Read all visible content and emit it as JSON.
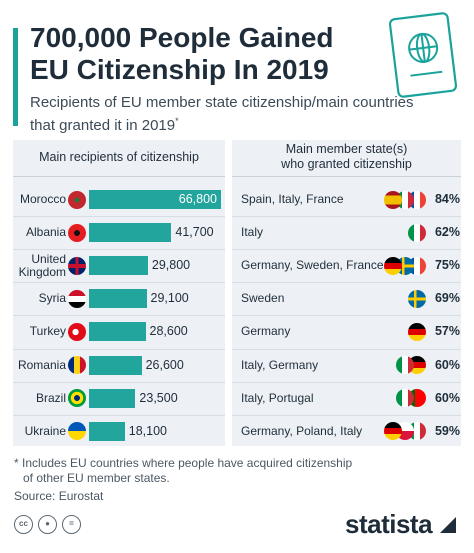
{
  "header": {
    "title_line1": "700,000 People Gained",
    "title_line2": "EU Citizenship In 2019",
    "subtitle_line1": "Recipients of EU member state citizenship/main countries",
    "subtitle_line2": "that granted it in 2019",
    "subtitle_marker": "*"
  },
  "table": {
    "left_header": "Main recipients of citizenship",
    "right_header_line1": "Main member state(s)",
    "right_header_line2": "who granted citizenship"
  },
  "chart_data": {
    "type": "bar",
    "orientation": "horizontal",
    "categories": [
      "Morocco",
      "Albania",
      "United Kingdom",
      "Syria",
      "Turkey",
      "Romania",
      "Brazil",
      "Ukraine"
    ],
    "category_lines": [
      [
        "Morocco"
      ],
      [
        "Albania"
      ],
      [
        "United",
        "Kingdom"
      ],
      [
        "Syria"
      ],
      [
        "Turkey"
      ],
      [
        "Romania"
      ],
      [
        "Brazil"
      ],
      [
        "Ukraine"
      ]
    ],
    "values": [
      66800,
      41700,
      29800,
      29100,
      28600,
      26600,
      23500,
      18100
    ],
    "value_labels": [
      "66,800",
      "41,700",
      "29,800",
      "29,100",
      "28,600",
      "26,600",
      "23,500",
      "18,100"
    ],
    "granting_states": [
      "Spain, Italy, France",
      "Italy",
      "Germany, Sweden, France",
      "Sweden",
      "Germany",
      "Italy, Germany",
      "Italy, Portugal",
      "Germany, Poland, Italy"
    ],
    "granting_share": [
      "84%",
      "62%",
      "75%",
      "69%",
      "57%",
      "60%",
      "60%",
      "59%"
    ],
    "recipient_flags": [
      "morocco-flag-icon",
      "albania-flag-icon",
      "uk-flag-icon",
      "syria-flag-icon",
      "turkey-flag-icon",
      "romania-flag-icon",
      "brazil-flag-icon",
      "ukraine-flag-icon"
    ],
    "granting_flags": [
      [
        "spain",
        "italy",
        "france"
      ],
      [
        "italy"
      ],
      [
        "germany",
        "sweden",
        "france"
      ],
      [
        "sweden"
      ],
      [
        "germany"
      ],
      [
        "italy",
        "germany"
      ],
      [
        "italy",
        "portugal"
      ],
      [
        "germany",
        "poland",
        "italy"
      ]
    ],
    "bar_color": "#21a59c",
    "xlim": [
      0,
      66800
    ]
  },
  "footer": {
    "footnote_line1": "* Includes EU countries where people have acquired citizenship",
    "footnote_line2": "of other EU member states.",
    "source": "Source: Eurostat",
    "license_icons": [
      "cc-icon",
      "person-icon",
      "equals-icon"
    ],
    "brand": "statista"
  },
  "colors": {
    "accent": "#1aa39a",
    "panel": "#edf1f5",
    "text": "#1f2d3a"
  }
}
